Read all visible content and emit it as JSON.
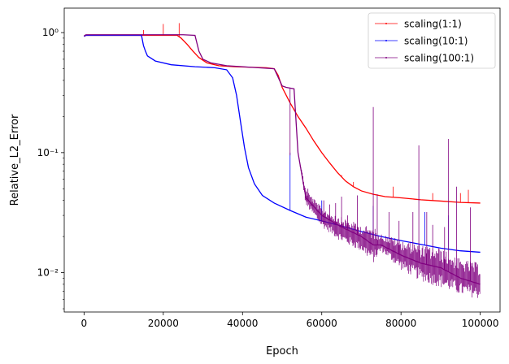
{
  "chart_data": {
    "type": "line",
    "title": "",
    "xlabel": "Epoch",
    "ylabel": "Relative_L2_Error",
    "x_scale": "linear",
    "y_scale": "log",
    "xlim": [
      -5000,
      105000
    ],
    "ylim": [
      0.0047,
      1.6
    ],
    "x_ticks": [
      0,
      20000,
      40000,
      60000,
      80000,
      100000
    ],
    "x_tick_labels": [
      "0",
      "20000",
      "40000",
      "60000",
      "80000",
      "100000"
    ],
    "y_ticks": [
      0.01,
      0.1,
      1
    ],
    "y_tick_labels": [
      "10⁻²",
      "10⁻¹",
      "10⁰"
    ],
    "grid": false,
    "legend_position": "top-right",
    "series": [
      {
        "name": "scaling(1:1)",
        "color": "#ff0000",
        "x": [
          0,
          500,
          5000,
          10000,
          15000,
          20000,
          23500,
          24500,
          26000,
          27500,
          29000,
          31000,
          34000,
          38000,
          42000,
          46000,
          48000,
          49000,
          50000,
          52000,
          54000,
          56000,
          58000,
          60000,
          62000,
          64000,
          66000,
          68000,
          70000,
          73000,
          76000,
          80000,
          85000,
          90000,
          95000,
          100000
        ],
        "y": [
          0.93,
          0.95,
          0.95,
          0.95,
          0.95,
          0.95,
          0.95,
          0.9,
          0.8,
          0.7,
          0.62,
          0.56,
          0.53,
          0.52,
          0.515,
          0.51,
          0.5,
          0.44,
          0.35,
          0.26,
          0.2,
          0.16,
          0.125,
          0.1,
          0.082,
          0.068,
          0.058,
          0.052,
          0.048,
          0.045,
          0.043,
          0.042,
          0.0405,
          0.0395,
          0.0385,
          0.038
        ],
        "spikes": [
          {
            "x": 15000,
            "y": 1.05
          },
          {
            "x": 20000,
            "y": 1.18
          },
          {
            "x": 24000,
            "y": 1.2
          },
          {
            "x": 65000,
            "y": 0.065
          },
          {
            "x": 68000,
            "y": 0.057
          },
          {
            "x": 78000,
            "y": 0.052
          },
          {
            "x": 88000,
            "y": 0.046
          },
          {
            "x": 95000,
            "y": 0.046
          },
          {
            "x": 97000,
            "y": 0.049
          }
        ]
      },
      {
        "name": "scaling(10:1)",
        "color": "#0000ff",
        "x": [
          0,
          500,
          5000,
          10000,
          14500,
          15000,
          15500,
          16000,
          18000,
          22000,
          28000,
          33000,
          36000,
          37500,
          38500,
          39500,
          40500,
          41500,
          43000,
          45000,
          48000,
          52000,
          56000,
          60000,
          65000,
          70000,
          75000,
          80000,
          85000,
          90000,
          95000,
          100000
        ],
        "y": [
          0.93,
          0.95,
          0.95,
          0.95,
          0.95,
          0.78,
          0.7,
          0.64,
          0.58,
          0.54,
          0.52,
          0.51,
          0.49,
          0.42,
          0.3,
          0.18,
          0.11,
          0.075,
          0.055,
          0.044,
          0.038,
          0.033,
          0.029,
          0.027,
          0.0245,
          0.022,
          0.02,
          0.0185,
          0.0172,
          0.016,
          0.0152,
          0.0148
        ],
        "spikes": [
          {
            "x": 52000,
            "y": 0.1
          },
          {
            "x": 60000,
            "y": 0.04
          },
          {
            "x": 73000,
            "y": 0.036
          },
          {
            "x": 86000,
            "y": 0.032
          },
          {
            "x": 92000,
            "y": 0.03
          }
        ]
      },
      {
        "name": "scaling(100:1)",
        "color": "#800080",
        "x": [
          0,
          500,
          5000,
          10000,
          15000,
          20000,
          25000,
          28000,
          29000,
          30000,
          32000,
          36000,
          40000,
          44000,
          48000,
          50000,
          51000,
          53000,
          54000,
          56000,
          60000,
          65000,
          70000,
          73000,
          75000,
          80000,
          85000,
          90000,
          95000,
          100000
        ],
        "y": [
          0.94,
          0.96,
          0.96,
          0.96,
          0.96,
          0.96,
          0.96,
          0.95,
          0.7,
          0.6,
          0.56,
          0.53,
          0.52,
          0.51,
          0.5,
          0.36,
          0.35,
          0.34,
          0.1,
          0.042,
          0.03,
          0.024,
          0.02,
          0.017,
          0.017,
          0.014,
          0.012,
          0.011,
          0.009,
          0.008
        ],
        "band_lower": [
          0.94,
          0.96,
          0.96,
          0.96,
          0.96,
          0.96,
          0.96,
          0.95,
          0.7,
          0.6,
          0.56,
          0.53,
          0.52,
          0.51,
          0.5,
          0.36,
          0.35,
          0.34,
          0.1,
          0.036,
          0.024,
          0.018,
          0.015,
          0.012,
          0.015,
          0.0105,
          0.0085,
          0.0075,
          0.0065,
          0.006
        ],
        "band_upper": [
          0.94,
          0.96,
          0.96,
          0.96,
          0.96,
          0.96,
          0.96,
          0.95,
          0.7,
          0.6,
          0.56,
          0.53,
          0.52,
          0.51,
          0.5,
          0.36,
          0.35,
          0.34,
          0.1,
          0.05,
          0.035,
          0.029,
          0.025,
          0.024,
          0.021,
          0.019,
          0.017,
          0.016,
          0.013,
          0.012
        ],
        "spikes": [
          {
            "x": 52000,
            "y": 0.095
          },
          {
            "x": 56500,
            "y": 0.05
          },
          {
            "x": 58500,
            "y": 0.035
          },
          {
            "x": 60500,
            "y": 0.04
          },
          {
            "x": 62000,
            "y": 0.037
          },
          {
            "x": 63500,
            "y": 0.038
          },
          {
            "x": 65000,
            "y": 0.043
          },
          {
            "x": 66500,
            "y": 0.03
          },
          {
            "x": 69000,
            "y": 0.044
          },
          {
            "x": 73000,
            "y": 0.24
          },
          {
            "x": 74000,
            "y": 0.045
          },
          {
            "x": 77000,
            "y": 0.032
          },
          {
            "x": 79500,
            "y": 0.027
          },
          {
            "x": 83000,
            "y": 0.032
          },
          {
            "x": 84500,
            "y": 0.115
          },
          {
            "x": 86500,
            "y": 0.032
          },
          {
            "x": 88000,
            "y": 0.025
          },
          {
            "x": 91000,
            "y": 0.024
          },
          {
            "x": 92000,
            "y": 0.13
          },
          {
            "x": 94000,
            "y": 0.052
          },
          {
            "x": 97500,
            "y": 0.035
          }
        ]
      }
    ]
  }
}
